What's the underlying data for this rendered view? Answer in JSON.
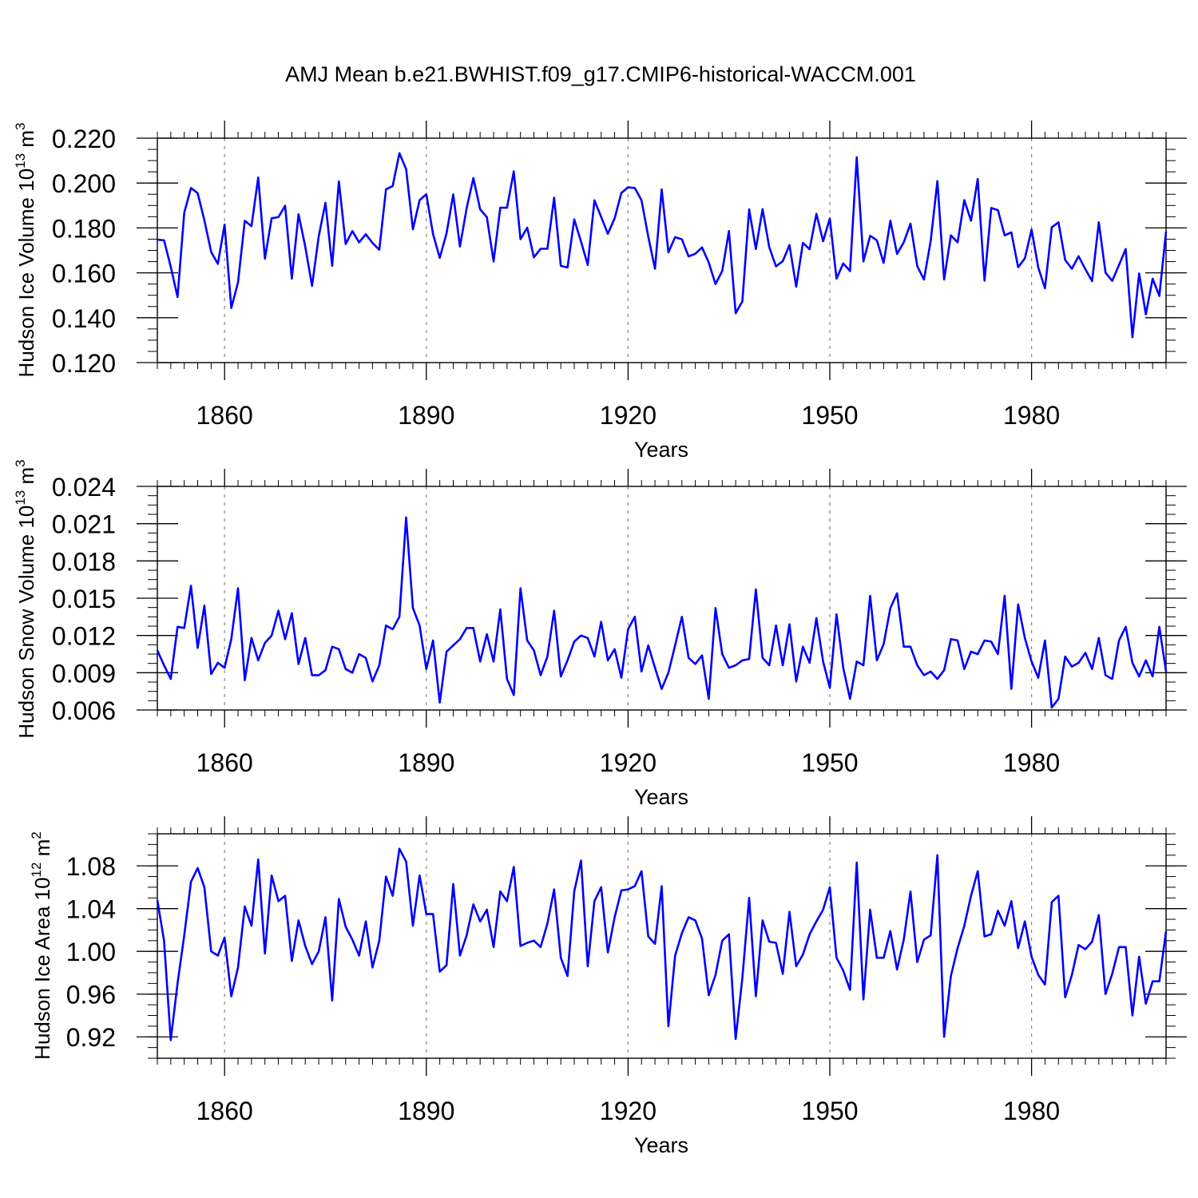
{
  "title": "AMJ Mean b.e21.BWHIST.f09_g17.CMIP6-historical-WACCM.001",
  "line_color": "#0000ff",
  "chart_data": [
    {
      "type": "line",
      "ylabel_main": "Hudson Ice Volume 10",
      "ylabel_exp": "13",
      "ylabel_unit": " m",
      "ylabel_unit_exp": "3",
      "xlabel": "Years",
      "xlim": [
        1850,
        2000
      ],
      "ylim": [
        0.12,
        0.22
      ],
      "yticks": [
        0.12,
        0.14,
        0.16,
        0.18,
        0.2,
        0.22
      ],
      "ytick_labels": [
        "0.120",
        "0.140",
        "0.160",
        "0.180",
        "0.200",
        "0.220"
      ],
      "xticks": [
        1860,
        1890,
        1920,
        1950,
        1980
      ],
      "xtick_labels": [
        "1860",
        "1890",
        "1920",
        "1950",
        "1980"
      ],
      "grid_x": true,
      "series": [
        {
          "name": "Hudson Ice Volume",
          "x_start": 1850,
          "values": [
            0.1748,
            0.1745,
            0.1627,
            0.1492,
            0.1868,
            0.1978,
            0.1955,
            0.1834,
            0.1693,
            0.164,
            0.1815,
            0.1443,
            0.1557,
            0.1832,
            0.1808,
            0.2025,
            0.1663,
            0.1843,
            0.1848,
            0.1899,
            0.1574,
            0.1861,
            0.1717,
            0.1542,
            0.1763,
            0.1912,
            0.1631,
            0.2008,
            0.1728,
            0.1786,
            0.1736,
            0.1772,
            0.1733,
            0.1703,
            0.1972,
            0.1987,
            0.2133,
            0.2062,
            0.1794,
            0.1924,
            0.195,
            0.1773,
            0.1667,
            0.1776,
            0.1949,
            0.1717,
            0.1888,
            0.2022,
            0.1883,
            0.1848,
            0.1651,
            0.189,
            0.189,
            0.2052,
            0.175,
            0.1801,
            0.1669,
            0.1707,
            0.1707,
            0.1935,
            0.1631,
            0.1624,
            0.1838,
            0.1739,
            0.1635,
            0.1923,
            0.1849,
            0.1774,
            0.1843,
            0.1956,
            0.1981,
            0.1978,
            0.1924,
            0.1761,
            0.1618,
            0.1972,
            0.1691,
            0.1759,
            0.1749,
            0.1673,
            0.1685,
            0.1713,
            0.1646,
            0.155,
            0.1608,
            0.1786,
            0.142,
            0.1473,
            0.1883,
            0.1706,
            0.1884,
            0.1714,
            0.1629,
            0.1652,
            0.1724,
            0.1538,
            0.1733,
            0.1705,
            0.1863,
            0.1741,
            0.1842,
            0.1574,
            0.1642,
            0.1608,
            0.2115,
            0.1651,
            0.1765,
            0.1745,
            0.1644,
            0.1832,
            0.1684,
            0.1736,
            0.1819,
            0.163,
            0.157,
            0.1742,
            0.2009,
            0.157,
            0.1767,
            0.1736,
            0.1924,
            0.1832,
            0.2018,
            0.1565,
            0.1889,
            0.1879,
            0.1767,
            0.178,
            0.1625,
            0.1664,
            0.1793,
            0.1624,
            0.1531,
            0.1803,
            0.1825,
            0.1657,
            0.1618,
            0.1674,
            0.1616,
            0.1563,
            0.1825,
            0.1601,
            0.1564,
            0.1635,
            0.1706,
            0.1313,
            0.1597,
            0.1415,
            0.1574,
            0.1497,
            0.1784
          ]
        }
      ]
    },
    {
      "type": "line",
      "ylabel_main": "Hudson Snow Volume 10",
      "ylabel_exp": "13",
      "ylabel_unit": " m",
      "ylabel_unit_exp": "3",
      "xlabel": "Years",
      "xlim": [
        1850,
        2000
      ],
      "ylim": [
        0.006,
        0.024
      ],
      "yticks": [
        0.006,
        0.009,
        0.012,
        0.015,
        0.018,
        0.021,
        0.024
      ],
      "ytick_labels": [
        "0.006",
        "0.009",
        "0.012",
        "0.015",
        "0.018",
        "0.021",
        "0.024"
      ],
      "xticks": [
        1860,
        1890,
        1920,
        1950,
        1980
      ],
      "xtick_labels": [
        "1860",
        "1890",
        "1920",
        "1950",
        "1980"
      ],
      "grid_x": true,
      "series": [
        {
          "name": "Hudson Snow Volume",
          "x_start": 1850,
          "values": [
            0.0108,
            0.0096,
            0.0085,
            0.0127,
            0.0126,
            0.016,
            0.011,
            0.0144,
            0.0089,
            0.0098,
            0.0094,
            0.0117,
            0.0158,
            0.0084,
            0.0118,
            0.01,
            0.0114,
            0.012,
            0.014,
            0.0117,
            0.0138,
            0.0097,
            0.0118,
            0.0088,
            0.0088,
            0.0092,
            0.0111,
            0.0109,
            0.0093,
            0.009,
            0.0105,
            0.0102,
            0.0083,
            0.0096,
            0.0128,
            0.0125,
            0.0135,
            0.0215,
            0.0142,
            0.0128,
            0.0093,
            0.0116,
            0.0066,
            0.0107,
            0.0112,
            0.0117,
            0.0126,
            0.0126,
            0.0099,
            0.0121,
            0.0099,
            0.0141,
            0.0085,
            0.0072,
            0.0158,
            0.0116,
            0.0108,
            0.0088,
            0.0103,
            0.014,
            0.0087,
            0.01,
            0.0115,
            0.012,
            0.0118,
            0.0103,
            0.0131,
            0.01,
            0.0109,
            0.0086,
            0.0125,
            0.0135,
            0.0091,
            0.0112,
            0.0094,
            0.0077,
            0.009,
            0.0112,
            0.0135,
            0.0102,
            0.0097,
            0.0104,
            0.0069,
            0.0142,
            0.0105,
            0.0094,
            0.0096,
            0.01,
            0.0101,
            0.0157,
            0.0102,
            0.0096,
            0.0128,
            0.0096,
            0.0129,
            0.0083,
            0.0111,
            0.0098,
            0.0134,
            0.0099,
            0.0078,
            0.0137,
            0.0094,
            0.0069,
            0.0099,
            0.0096,
            0.0152,
            0.01,
            0.0113,
            0.0142,
            0.0154,
            0.0111,
            0.0111,
            0.0096,
            0.0088,
            0.0091,
            0.0085,
            0.0092,
            0.0117,
            0.0116,
            0.0093,
            0.0107,
            0.0105,
            0.0116,
            0.0115,
            0.0105,
            0.0152,
            0.0077,
            0.0145,
            0.0118,
            0.0099,
            0.0086,
            0.0116,
            0.0062,
            0.0069,
            0.0103,
            0.0095,
            0.0098,
            0.0106,
            0.0093,
            0.0118,
            0.0088,
            0.0085,
            0.0116,
            0.0127,
            0.0098,
            0.0087,
            0.01,
            0.0087,
            0.0127,
            0.0091
          ]
        }
      ]
    },
    {
      "type": "line",
      "ylabel_main": "Hudson Ice Area 10",
      "ylabel_exp": "12",
      "ylabel_unit": " m",
      "ylabel_unit_exp": "2",
      "xlabel": "Years",
      "xlim": [
        1850,
        2000
      ],
      "ylim": [
        0.9,
        1.11
      ],
      "yticks": [
        0.92,
        0.96,
        1.0,
        1.04,
        1.08
      ],
      "ytick_labels": [
        "0.92",
        "0.96",
        "1.00",
        "1.04",
        "1.08"
      ],
      "xticks": [
        1860,
        1890,
        1920,
        1950,
        1980
      ],
      "xtick_labels": [
        "1860",
        "1890",
        "1920",
        "1950",
        "1980"
      ],
      "grid_x": true,
      "series": [
        {
          "name": "Hudson Ice Area",
          "x_start": 1850,
          "values": [
            1.048,
            1.01,
            0.917,
            0.97,
            1.015,
            1.065,
            1.078,
            1.06,
            1.0,
            0.996,
            1.013,
            0.958,
            0.985,
            1.042,
            1.024,
            1.086,
            0.998,
            1.071,
            1.047,
            1.052,
            0.991,
            1.029,
            1.005,
            0.988,
            1.0,
            1.032,
            0.954,
            1.049,
            1.023,
            1.011,
            0.996,
            1.028,
            0.985,
            1.01,
            1.07,
            1.052,
            1.096,
            1.084,
            1.024,
            1.071,
            1.035,
            1.035,
            0.981,
            0.987,
            1.063,
            0.996,
            1.015,
            1.044,
            1.028,
            1.039,
            1.004,
            1.056,
            1.047,
            1.079,
            1.005,
            1.008,
            1.01,
            1.004,
            1.026,
            1.058,
            0.994,
            0.977,
            1.056,
            1.085,
            0.986,
            1.047,
            1.06,
            0.999,
            1.032,
            1.057,
            1.058,
            1.061,
            1.075,
            1.014,
            1.007,
            1.061,
            0.93,
            0.996,
            1.017,
            1.032,
            1.029,
            1.012,
            0.959,
            0.978,
            1.01,
            1.016,
            0.918,
            0.975,
            1.05,
            0.958,
            1.029,
            1.009,
            1.008,
            0.979,
            1.037,
            0.986,
            0.997,
            1.016,
            1.028,
            1.039,
            1.06,
            0.994,
            0.982,
            0.964,
            1.083,
            0.955,
            1.039,
            0.994,
            0.994,
            1.019,
            0.983,
            1.011,
            1.056,
            0.99,
            1.011,
            1.015,
            1.09,
            0.92,
            0.977,
            1.003,
            1.024,
            1.052,
            1.075,
            1.014,
            1.016,
            1.038,
            1.024,
            1.047,
            1.003,
            1.028,
            0.995,
            0.978,
            0.969,
            1.046,
            1.052,
            0.957,
            0.978,
            1.006,
            1.002,
            1.009,
            1.034,
            0.96,
            0.979,
            1.004,
            1.004,
            0.94,
            0.995,
            0.951,
            0.972,
            0.972,
            1.019
          ]
        }
      ]
    }
  ]
}
